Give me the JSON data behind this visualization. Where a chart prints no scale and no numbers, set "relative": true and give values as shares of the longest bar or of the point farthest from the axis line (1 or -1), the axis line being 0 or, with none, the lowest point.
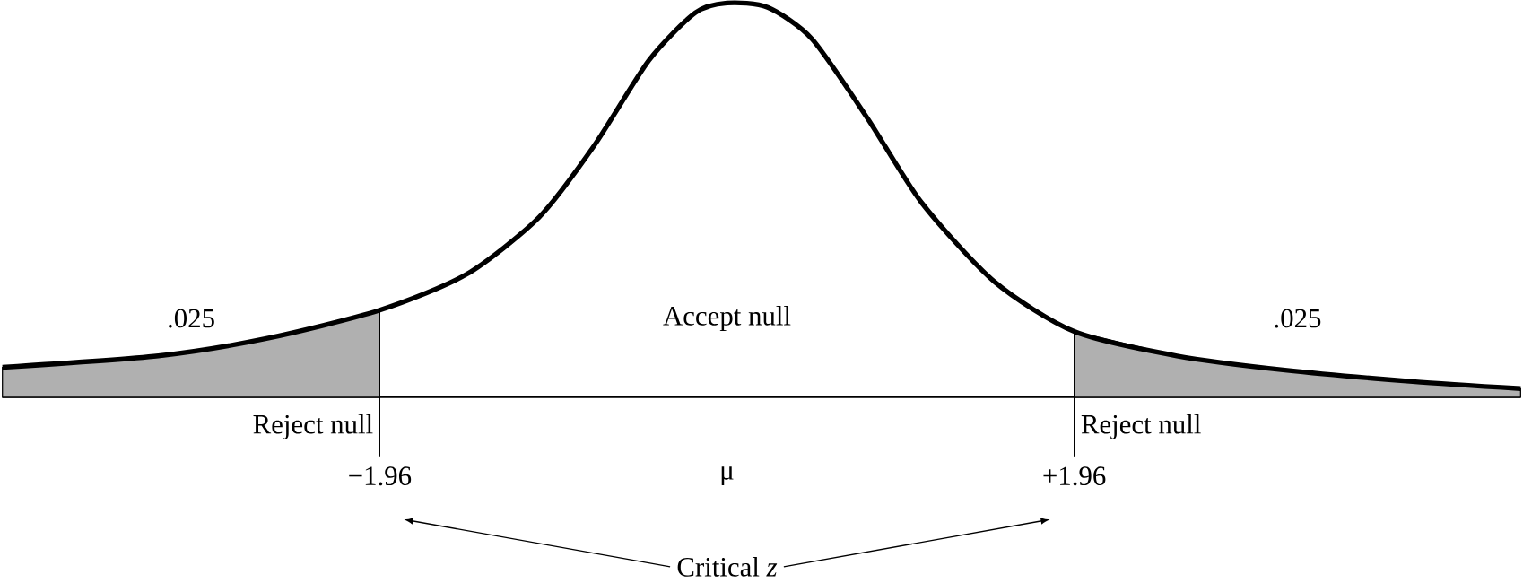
{
  "chart_data": {
    "type": "line",
    "relative": true,
    "xlim": [
      -4.09,
      4.48
    ],
    "xticks": [
      {
        "value": -1.96,
        "label": "−1.96"
      },
      {
        "value": 0,
        "label": "μ"
      },
      {
        "value": 1.96,
        "label": "+1.96"
      }
    ],
    "series": [
      {
        "type": "area",
        "name": ".025",
        "color": "#b0b0b0",
        "x": [
          -4.09,
          -3.21,
          -2.6,
          -1.96
        ],
        "values": [
          0.076,
          0.105,
          0.149,
          0.221
        ]
      },
      {
        "type": "area",
        "name": ".025",
        "color": "#b0b0b0",
        "x": [
          1.96,
          2.54,
          3.15,
          3.87,
          4.48
        ],
        "values": [
          0.167,
          0.105,
          0.069,
          0.04,
          0.022
        ]
      },
      {
        "color": "#000000",
        "x": [
          -4.09,
          -3.21,
          -2.6,
          -1.96,
          -1.47,
          -1.06,
          -0.75,
          -0.44,
          -0.18,
          0,
          0.23,
          0.48,
          0.79,
          1.1,
          1.51,
          1.96,
          2.54,
          3.15,
          3.87,
          4.48
        ],
        "values": [
          0.076,
          0.105,
          0.149,
          0.221,
          0.312,
          0.457,
          0.638,
          0.855,
          0.975,
          1,
          0.989,
          0.909,
          0.71,
          0.493,
          0.293,
          0.167,
          0.105,
          0.069,
          0.04,
          0.022
        ]
      }
    ],
    "ref_lines": [
      {
        "axis": "x",
        "value": -1.96,
        "label": "Reject null"
      },
      {
        "axis": "x",
        "value": 1.96,
        "label": "Reject null"
      }
    ],
    "annotations": [
      "Accept null",
      "Critical *z*"
    ]
  }
}
